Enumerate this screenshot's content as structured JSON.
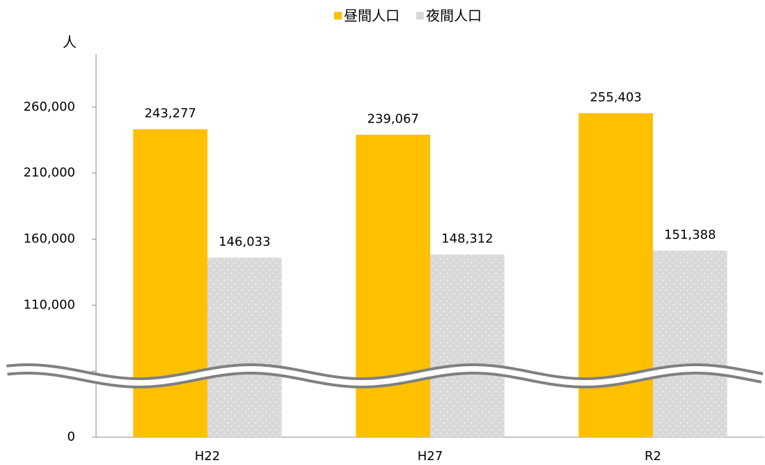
{
  "chart_data": {
    "type": "bar",
    "y_axis_label": "人",
    "categories": [
      "H22",
      "H27",
      "R2"
    ],
    "series": [
      {
        "name": "昼間人口",
        "color": "#FFC000",
        "values": [
          243277,
          239067,
          255403
        ],
        "value_labels": [
          "243,277",
          "239,067",
          "255,403"
        ]
      },
      {
        "name": "夜間人口",
        "color": "#D9D9D9",
        "values": [
          146033,
          148312,
          151388
        ],
        "value_labels": [
          "146,033",
          "148,312",
          "151,388"
        ]
      }
    ],
    "ylim": [
      0,
      300000
    ],
    "yticks": [
      0,
      {
        "value": 110000,
        "label": "110,000"
      },
      {
        "value": 160000,
        "label": "160,000"
      },
      {
        "value": 210000,
        "label": "210,000"
      },
      {
        "value": 260000,
        "label": "260,000"
      }
    ],
    "axis_break": true,
    "legend": "top"
  }
}
